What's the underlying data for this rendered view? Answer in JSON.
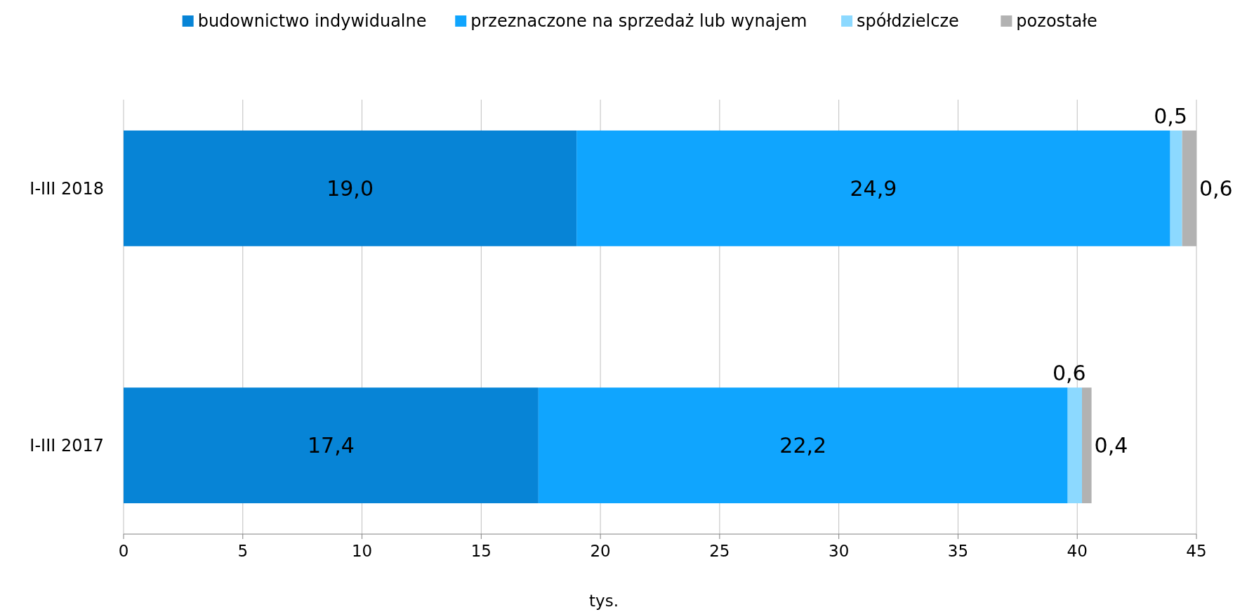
{
  "chart_data": {
    "type": "bar",
    "orientation": "horizontal",
    "stacked": true,
    "categories": [
      "I-III 2018",
      "I-III 2017"
    ],
    "series": [
      {
        "name": "budownictwo indywidualne",
        "color": "#0784d6",
        "values": [
          19.0,
          17.4
        ],
        "value_labels": [
          "19,0",
          "17,4"
        ]
      },
      {
        "name": "przeznaczone na sprzedaż lub wynajem",
        "color": "#10a5fe",
        "values": [
          24.9,
          22.2
        ],
        "value_labels": [
          "24,9",
          "22,2"
        ]
      },
      {
        "name": "spółdzielcze",
        "color": "#8cd9ff",
        "values": [
          0.5,
          0.6
        ],
        "value_labels": [
          "0,5",
          "0,6"
        ]
      },
      {
        "name": "pozostałe",
        "color": "#b2b2b2",
        "values": [
          0.6,
          0.4
        ],
        "value_labels": [
          "0,6",
          "0,4"
        ]
      }
    ],
    "xlim": [
      0,
      45
    ],
    "xticks": [
      0,
      5,
      10,
      15,
      20,
      25,
      30,
      35,
      40,
      45
    ],
    "xlabel": "tys.",
    "grid": "x",
    "legend": "top"
  }
}
